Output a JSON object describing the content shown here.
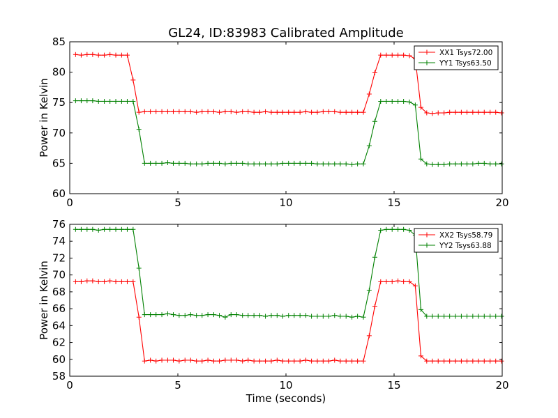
{
  "figure": {
    "title": "GL24, ID:83983 Calibrated Amplitude",
    "xlabel": "Time (seconds)"
  },
  "chart_data": [
    {
      "type": "line",
      "title": "GL24, ID:83983 Calibrated Amplitude",
      "xlabel": "",
      "ylabel": "Power in Kelvin",
      "xlim": [
        0,
        20
      ],
      "ylim": [
        60,
        85
      ],
      "xticks": [
        0,
        5,
        10,
        15,
        20
      ],
      "yticks": [
        60,
        65,
        70,
        75,
        80,
        85
      ],
      "grid": false,
      "legend": "top-right",
      "x": [
        0.27,
        0.53,
        0.8,
        1.06,
        1.33,
        1.6,
        1.86,
        2.13,
        2.4,
        2.66,
        2.93,
        3.2,
        3.46,
        3.73,
        3.99,
        4.26,
        4.53,
        4.79,
        5.06,
        5.33,
        5.59,
        5.86,
        6.12,
        6.39,
        6.66,
        6.92,
        7.19,
        7.46,
        7.72,
        7.99,
        8.25,
        8.52,
        8.79,
        9.05,
        9.32,
        9.59,
        9.85,
        10.12,
        10.38,
        10.65,
        10.92,
        11.18,
        11.45,
        11.72,
        11.98,
        12.25,
        12.51,
        12.78,
        13.05,
        13.31,
        13.58,
        13.85,
        14.11,
        14.38,
        14.64,
        14.91,
        15.18,
        15.44,
        15.71,
        15.98,
        16.24,
        16.51,
        16.77,
        17.04,
        17.31,
        17.57,
        17.84,
        18.11,
        18.37,
        18.64,
        18.9,
        19.17,
        19.44,
        19.7,
        19.97
      ],
      "series": [
        {
          "name": "XX1 Tsys72.00",
          "color": "#ff0000",
          "values": [
            82.9,
            82.8,
            82.9,
            82.9,
            82.8,
            82.8,
            82.9,
            82.8,
            82.8,
            82.8,
            78.7,
            73.4,
            73.5,
            73.5,
            73.5,
            73.5,
            73.5,
            73.5,
            73.5,
            73.5,
            73.5,
            73.4,
            73.5,
            73.5,
            73.5,
            73.4,
            73.5,
            73.5,
            73.4,
            73.5,
            73.5,
            73.4,
            73.4,
            73.5,
            73.4,
            73.4,
            73.4,
            73.4,
            73.4,
            73.4,
            73.5,
            73.4,
            73.4,
            73.5,
            73.5,
            73.5,
            73.4,
            73.4,
            73.4,
            73.4,
            73.4,
            76.4,
            79.9,
            82.8,
            82.8,
            82.8,
            82.8,
            82.8,
            82.7,
            82.2,
            74.2,
            73.3,
            73.2,
            73.3,
            73.3,
            73.4,
            73.4,
            73.4,
            73.4,
            73.4,
            73.4,
            73.4,
            73.4,
            73.4,
            73.3
          ]
        },
        {
          "name": "YY1 Tsys63.50",
          "color": "#008000",
          "values": [
            75.3,
            75.3,
            75.3,
            75.3,
            75.2,
            75.2,
            75.2,
            75.2,
            75.2,
            75.2,
            75.2,
            70.6,
            65.0,
            65.0,
            65.0,
            65.0,
            65.1,
            65.0,
            65.0,
            65.0,
            64.9,
            64.9,
            64.9,
            65.0,
            65.0,
            65.0,
            64.9,
            65.0,
            65.0,
            65.0,
            64.9,
            64.9,
            64.9,
            64.9,
            64.9,
            64.9,
            65.0,
            65.0,
            65.0,
            65.0,
            65.0,
            65.0,
            64.9,
            64.9,
            64.9,
            64.9,
            64.9,
            64.9,
            64.8,
            64.9,
            64.9,
            67.9,
            71.9,
            75.2,
            75.2,
            75.2,
            75.2,
            75.2,
            75.1,
            74.6,
            65.7,
            64.9,
            64.8,
            64.8,
            64.8,
            64.9,
            64.9,
            64.9,
            64.9,
            64.9,
            65.0,
            65.0,
            64.9,
            64.9,
            64.9
          ]
        }
      ]
    },
    {
      "type": "line",
      "title": "",
      "xlabel": "Time (seconds)",
      "ylabel": "Power in Kelvin",
      "xlim": [
        0,
        20
      ],
      "ylim": [
        58,
        76
      ],
      "xticks": [
        0,
        5,
        10,
        15,
        20
      ],
      "yticks": [
        58,
        60,
        62,
        64,
        66,
        68,
        70,
        72,
        74,
        76
      ],
      "grid": false,
      "legend": "top-right",
      "x": [
        0.27,
        0.53,
        0.8,
        1.06,
        1.33,
        1.6,
        1.86,
        2.13,
        2.4,
        2.66,
        2.93,
        3.2,
        3.46,
        3.73,
        3.99,
        4.26,
        4.53,
        4.79,
        5.06,
        5.33,
        5.59,
        5.86,
        6.12,
        6.39,
        6.66,
        6.92,
        7.19,
        7.46,
        7.72,
        7.99,
        8.25,
        8.52,
        8.79,
        9.05,
        9.32,
        9.59,
        9.85,
        10.12,
        10.38,
        10.65,
        10.92,
        11.18,
        11.45,
        11.72,
        11.98,
        12.25,
        12.51,
        12.78,
        13.05,
        13.31,
        13.58,
        13.85,
        14.11,
        14.38,
        14.64,
        14.91,
        15.18,
        15.44,
        15.71,
        15.98,
        16.24,
        16.51,
        16.77,
        17.04,
        17.31,
        17.57,
        17.84,
        18.11,
        18.37,
        18.64,
        18.9,
        19.17,
        19.44,
        19.7,
        19.97
      ],
      "series": [
        {
          "name": "XX2 Tsys58.79",
          "color": "#ff0000",
          "values": [
            69.2,
            69.2,
            69.3,
            69.3,
            69.2,
            69.2,
            69.3,
            69.2,
            69.2,
            69.2,
            69.2,
            65.0,
            59.8,
            59.9,
            59.8,
            59.9,
            59.9,
            59.9,
            59.8,
            59.9,
            59.9,
            59.8,
            59.8,
            59.9,
            59.8,
            59.8,
            59.9,
            59.9,
            59.9,
            59.8,
            59.9,
            59.8,
            59.8,
            59.8,
            59.8,
            59.9,
            59.8,
            59.8,
            59.8,
            59.8,
            59.9,
            59.8,
            59.8,
            59.8,
            59.8,
            59.9,
            59.8,
            59.8,
            59.8,
            59.8,
            59.8,
            62.8,
            66.3,
            69.2,
            69.2,
            69.2,
            69.3,
            69.2,
            69.2,
            68.7,
            60.4,
            59.8,
            59.8,
            59.8,
            59.8,
            59.8,
            59.8,
            59.8,
            59.8,
            59.8,
            59.8,
            59.8,
            59.8,
            59.8,
            59.8
          ]
        },
        {
          "name": "YY2 Tsys63.88",
          "color": "#008000",
          "values": [
            75.4,
            75.4,
            75.4,
            75.4,
            75.3,
            75.4,
            75.4,
            75.4,
            75.4,
            75.4,
            75.4,
            70.8,
            65.3,
            65.3,
            65.3,
            65.3,
            65.4,
            65.3,
            65.2,
            65.2,
            65.3,
            65.2,
            65.2,
            65.3,
            65.3,
            65.2,
            65.0,
            65.3,
            65.3,
            65.2,
            65.2,
            65.2,
            65.2,
            65.1,
            65.2,
            65.2,
            65.1,
            65.2,
            65.2,
            65.2,
            65.2,
            65.1,
            65.1,
            65.1,
            65.1,
            65.2,
            65.1,
            65.1,
            65.0,
            65.1,
            65.0,
            68.2,
            72.1,
            75.3,
            75.4,
            75.4,
            75.4,
            75.4,
            75.3,
            74.7,
            65.9,
            65.1,
            65.1,
            65.1,
            65.1,
            65.1,
            65.1,
            65.1,
            65.1,
            65.1,
            65.1,
            65.1,
            65.1,
            65.1,
            65.1
          ]
        }
      ]
    }
  ]
}
